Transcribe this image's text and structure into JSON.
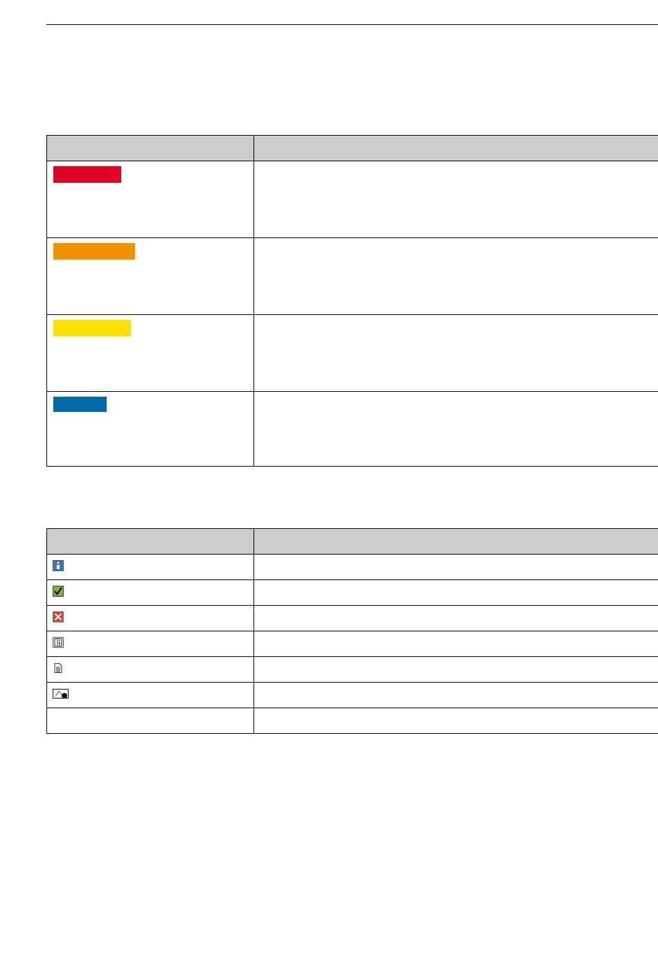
{
  "severity_table": {
    "rows": [
      {
        "color": "#e10026"
      },
      {
        "color": "#f39200"
      },
      {
        "color": "#ffe000"
      },
      {
        "color": "#0068ad"
      }
    ]
  },
  "icon_table": {
    "rows": [
      {
        "icon": "info-icon"
      },
      {
        "icon": "checkmark-icon"
      },
      {
        "icon": "error-x-icon"
      },
      {
        "icon": "manual-reference-icon"
      },
      {
        "icon": "document-icon"
      },
      {
        "icon": "graphic-reference-icon"
      },
      {
        "icon": ""
      }
    ]
  }
}
